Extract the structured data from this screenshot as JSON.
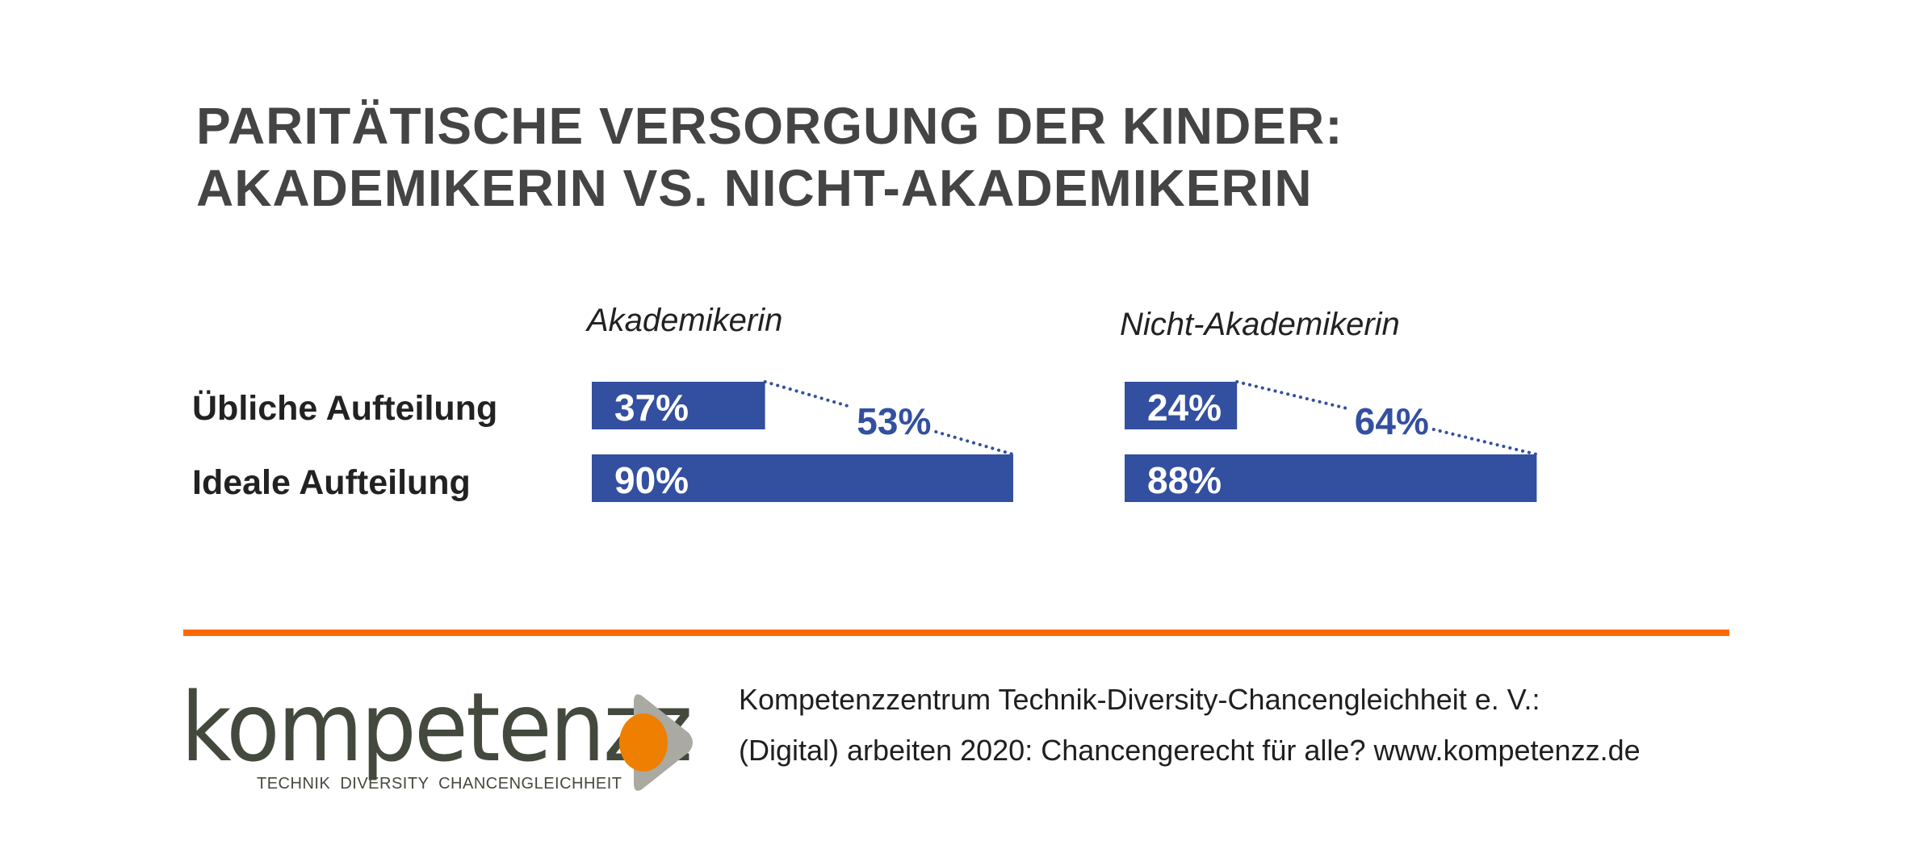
{
  "title": {
    "line1": "PARITÄTISCHE VERSORGUNG DER KINDER:",
    "line2": "AKADEMIKERIN VS. NICHT-AKADEMIKERIN"
  },
  "chart_data": {
    "type": "bar",
    "orientation": "horizontal",
    "title": "PARITÄTISCHE VERSORGUNG DER KINDER: AKADEMIKERIN VS. NICHT-AKADEMIKERIN",
    "categories": [
      "Übliche Aufteilung",
      "Ideale Aufteilung"
    ],
    "groups": [
      {
        "name": "Akademikerin",
        "values": [
          37,
          90
        ],
        "labels": [
          "37%",
          "90%"
        ],
        "gap_label": "53%",
        "gap_value": 53
      },
      {
        "name": "Nicht-Akademikerin",
        "values": [
          24,
          88
        ],
        "labels": [
          "24%",
          "88%"
        ],
        "gap_label": "64%",
        "gap_value": 64
      }
    ],
    "unit": "%",
    "xlim": [
      0,
      100
    ],
    "grid": false,
    "legend": "none",
    "bar_color": "#334fa0",
    "label_color": "#ffffff",
    "gap_color": "#334fa0"
  },
  "colors": {
    "title": "#444444",
    "bar": "#334fa0",
    "rule": "#ff6a00",
    "logo_text": "#434a3d",
    "logo_orange": "#ee7f00",
    "logo_gray": "#aaa9a2"
  },
  "footer": {
    "logo_word": "kompetenzz",
    "logo_tagline": "TECHNIK DIVERSITY CHANCENGLEICHHEIT",
    "line1": "Kompetenzzentrum Technik-Diversity-Chancengleichheit e. V.:",
    "line2": "(Digital) arbeiten 2020: Chancengerecht für alle? www.kompetenzz.de"
  }
}
